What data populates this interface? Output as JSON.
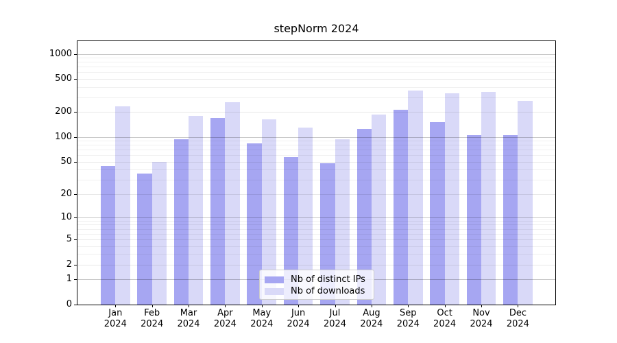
{
  "title": "stepNorm 2024",
  "chart_data": {
    "type": "bar",
    "title": "stepNorm 2024",
    "x_months": [
      "Jan",
      "Feb",
      "Mar",
      "Apr",
      "May",
      "Jun",
      "Jul",
      "Aug",
      "Sep",
      "Oct",
      "Nov",
      "Dec"
    ],
    "x_year": "2024",
    "series": [
      {
        "name": "Nb of distinct IPs",
        "color": "#a6a6f2",
        "values": [
          45,
          36,
          95,
          170,
          85,
          58,
          48,
          127,
          215,
          153,
          107,
          107
        ]
      },
      {
        "name": "Nb of downloads",
        "color": "#d9d9f8",
        "values": [
          235,
          50,
          183,
          265,
          165,
          130,
          95,
          190,
          365,
          338,
          355,
          275
        ]
      }
    ],
    "yticks": [
      0,
      1,
      2,
      5,
      10,
      20,
      50,
      100,
      200,
      500,
      1000
    ],
    "y_scale": "log10(1+x)",
    "ylim": [
      0,
      1430
    ],
    "grid": "horizontal major+minor",
    "legend_position": "lower-center-inside"
  },
  "colors": {
    "major_grid": "#c7c7c7",
    "minor_grid": "#ebebeb",
    "axis": "#000000",
    "legend_border": "#cccccc"
  }
}
